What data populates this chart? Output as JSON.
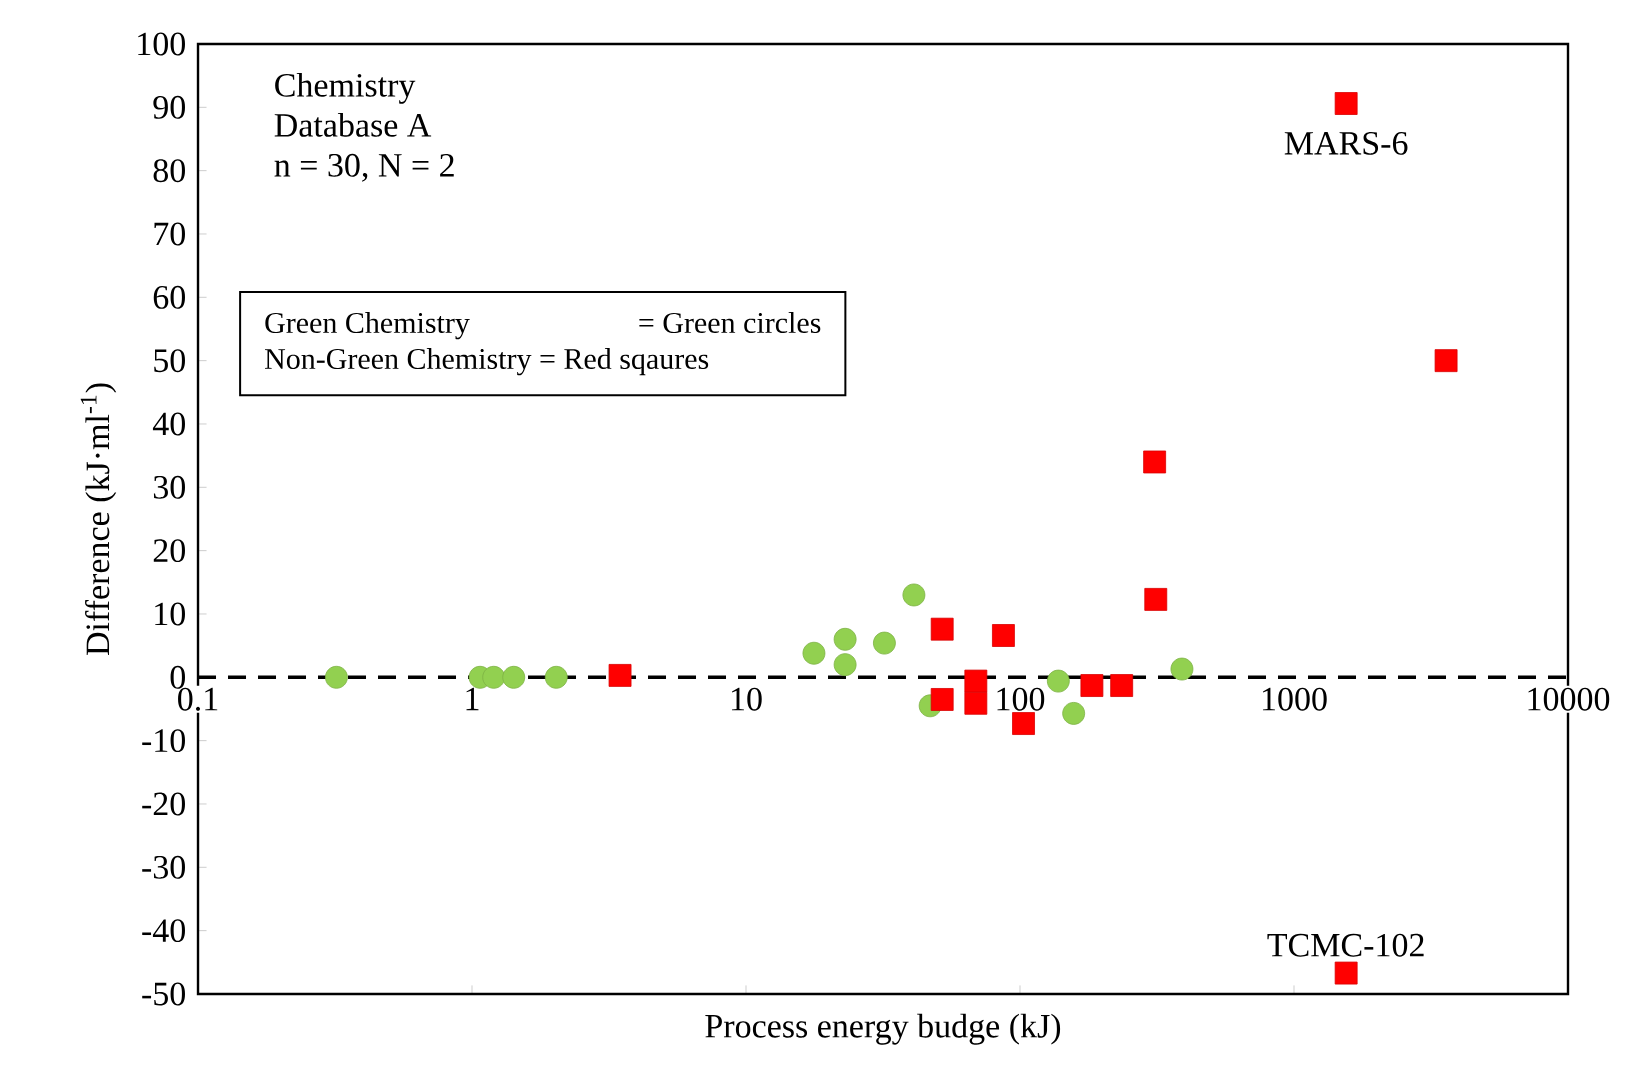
{
  "chart_data": {
    "type": "scatter",
    "xlabel": "Process energy budge (kJ)",
    "ylabel": "Difference (kJ·ml$^{-1}$)",
    "log": "x",
    "xlim": [
      0.1,
      10000
    ],
    "xticks": [
      0.1,
      1,
      10,
      100,
      1000,
      10000
    ],
    "ylim": [
      -50,
      100
    ],
    "yticks": [
      -50,
      -40,
      -30,
      -20,
      -10,
      0,
      10,
      20,
      30,
      40,
      50,
      60,
      70,
      80,
      90,
      100
    ],
    "grid": false,
    "legend": false,
    "series": [
      {
        "color": "#92d050",
        "marker": "circle",
        "x": [
          0.32,
          1.07,
          1.2,
          1.42,
          2.03,
          17.7,
          23,
          23,
          32,
          41,
          47,
          138,
          157,
          390
        ],
        "values": [
          0,
          0,
          0,
          0,
          0,
          3.8,
          6,
          2,
          5.4,
          13,
          -4.5,
          -0.6,
          -5.7,
          1.3
        ]
      },
      {
        "color": "#ff0000",
        "marker": "square",
        "x": [
          3.47,
          52,
          52,
          69,
          69,
          87,
          103,
          183,
          235,
          313,
          310,
          1550,
          3590,
          1550
        ],
        "values": [
          0.3,
          7.6,
          -3.5,
          -0.6,
          -4.1,
          6.6,
          -7.3,
          -1.3,
          -1.3,
          12.3,
          34,
          90.6,
          50,
          -46.7
        ]
      }
    ],
    "ref_lines": [
      {
        "axis": "y",
        "value": 0,
        "color": "#000000",
        "line_style": "dashed"
      }
    ],
    "annotations": [
      "Chemistry",
      "Database A",
      "n = 30, N = 2",
      "Green Chemistry          = Green circles",
      "Non-Green Chemistry = Red sqaures",
      {
        "text": "MARS-6",
        "x": 1550,
        "y": 90.6
      },
      {
        "text": "TCMC-102",
        "x": 1550,
        "y": -46.7
      }
    ]
  }
}
